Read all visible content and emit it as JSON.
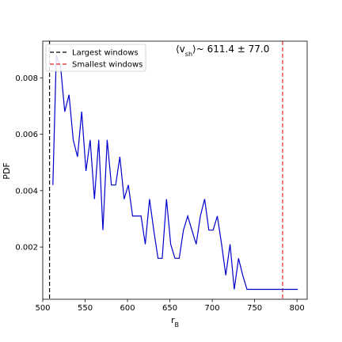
{
  "chart_data": {
    "type": "line",
    "title": "",
    "xlabel": "r",
    "xlabel_sub": "B",
    "ylabel": "PDF",
    "xlim": [
      500,
      812
    ],
    "ylim": [
      0.00015,
      0.0093
    ],
    "xticks": [
      500,
      550,
      600,
      650,
      700,
      750,
      800
    ],
    "yticks": [
      0.002,
      0.004,
      0.006,
      0.008
    ],
    "ytick_labels": [
      "0.002",
      "0.004",
      "0.006",
      "0.008"
    ],
    "grid": false,
    "legend_position": "top-left",
    "colors": {
      "series": "#0000cc",
      "largest": "#000000",
      "smallest": "#dd2222"
    },
    "series": [
      {
        "x": [
          512,
          516,
          521,
          526,
          531,
          536,
          541,
          546,
          551,
          556,
          561,
          566,
          571,
          576,
          581,
          586,
          591,
          596,
          601,
          606,
          611,
          616,
          621,
          626,
          631,
          636,
          641,
          646,
          651,
          656,
          661,
          666,
          671,
          676,
          681,
          686,
          691,
          696,
          701,
          706,
          711,
          716,
          721,
          726,
          731,
          736,
          741,
          746,
          751,
          756,
          761,
          766,
          771,
          776,
          781,
          786,
          791,
          796,
          801
        ],
        "values": [
          0.0042,
          0.0088,
          0.0084,
          0.0068,
          0.0074,
          0.0058,
          0.0052,
          0.0068,
          0.0047,
          0.0058,
          0.0037,
          0.0058,
          0.0026,
          0.0058,
          0.0042,
          0.0042,
          0.0052,
          0.0037,
          0.0042,
          0.0031,
          0.0031,
          0.0031,
          0.0021,
          0.0037,
          0.0026,
          0.0016,
          0.0016,
          0.0037,
          0.0021,
          0.0016,
          0.0016,
          0.0026,
          0.0031,
          0.0026,
          0.0021,
          0.0031,
          0.0037,
          0.0026,
          0.0026,
          0.0031,
          0.0021,
          0.001,
          0.0021,
          0.0005,
          0.0016,
          0.001,
          0.0005,
          0.0005,
          0.0005,
          0.0005,
          0.0005,
          0.0005,
          0.0005,
          0.0005,
          0.0005,
          0.0005,
          0.0005,
          0.0005,
          0.0005
        ]
      }
    ],
    "vlines": [
      {
        "name": "Largest windows",
        "x": 508,
        "color": "#000000"
      },
      {
        "name": "Smallest windows",
        "x": 783,
        "color": "#dd2222"
      }
    ],
    "annotation": {
      "open": "⟨v",
      "sub": "sh",
      "close": "⟩~  611.4 ± 77.0"
    }
  }
}
